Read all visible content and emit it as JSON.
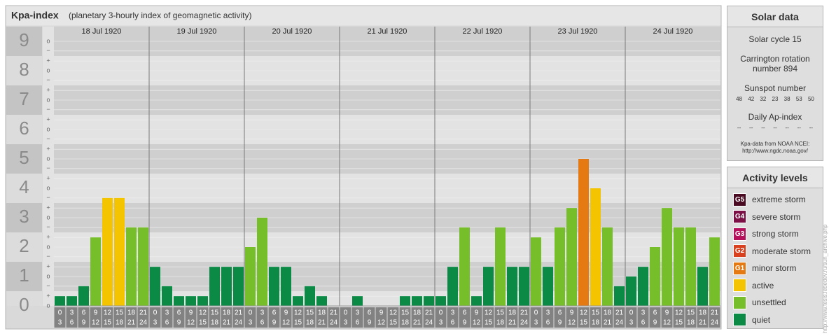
{
  "chart_data": {
    "type": "bar",
    "title": "Kpa-index",
    "subtitle": "(planetary 3-hourly index of geomagnetic activity)",
    "days": [
      "18 Jul 1920",
      "19 Jul 1920",
      "20 Jul 1920",
      "21 Jul 1920",
      "22 Jul 1920",
      "23 Jul 1920",
      "24 Jul 1920"
    ],
    "hour_starts": [
      0,
      3,
      6,
      9,
      12,
      15,
      18,
      21
    ],
    "hour_ends": [
      3,
      6,
      9,
      12,
      15,
      18,
      21,
      24
    ],
    "values": [
      0.33,
      0.33,
      0.67,
      2.33,
      3.67,
      3.67,
      2.67,
      2.67,
      1.33,
      0.67,
      0.33,
      0.33,
      0.33,
      1.33,
      1.33,
      1.33,
      2,
      3,
      1.33,
      1.33,
      0.33,
      0.67,
      0.33,
      0,
      0,
      0.33,
      0,
      0,
      0,
      0.33,
      0.33,
      0.33,
      0.33,
      1.33,
      2.67,
      0.33,
      1.33,
      2.67,
      1.33,
      1.33,
      2.33,
      1.33,
      2.67,
      3.33,
      5,
      4,
      2.67,
      0.67,
      1,
      1.33,
      2,
      3.33,
      2.67,
      2.67,
      1.33,
      2.33
    ],
    "colors": [
      "#0b8a46",
      "#0b8a46",
      "#0b8a46",
      "#76be2a",
      "#f5c400",
      "#f5c400",
      "#76be2a",
      "#76be2a",
      "#0b8a46",
      "#0b8a46",
      "#0b8a46",
      "#0b8a46",
      "#0b8a46",
      "#0b8a46",
      "#0b8a46",
      "#0b8a46",
      "#76be2a",
      "#76be2a",
      "#0b8a46",
      "#0b8a46",
      "#0b8a46",
      "#0b8a46",
      "#0b8a46",
      "#0b8a46",
      "#0b8a46",
      "#0b8a46",
      "#0b8a46",
      "#0b8a46",
      "#0b8a46",
      "#0b8a46",
      "#0b8a46",
      "#0b8a46",
      "#0b8a46",
      "#0b8a46",
      "#76be2a",
      "#0b8a46",
      "#0b8a46",
      "#76be2a",
      "#0b8a46",
      "#0b8a46",
      "#76be2a",
      "#0b8a46",
      "#76be2a",
      "#76be2a",
      "#e57a12",
      "#f5c400",
      "#76be2a",
      "#0b8a46",
      "#0b8a46",
      "#0b8a46",
      "#76be2a",
      "#76be2a",
      "#76be2a",
      "#76be2a",
      "#0b8a46",
      "#76be2a"
    ],
    "ylim": [
      0,
      9.5
    ],
    "yticks": [
      0,
      1,
      2,
      3,
      4,
      5,
      6,
      7,
      8,
      9
    ],
    "minor_ticks": [
      {
        "value": 0,
        "label": "o"
      },
      {
        "value": 0.33,
        "label": "+"
      },
      {
        "value": 0.67,
        "label": "−"
      },
      {
        "value": 1,
        "label": "o"
      },
      {
        "value": 1.33,
        "label": "+"
      },
      {
        "value": 1.67,
        "label": "−"
      },
      {
        "value": 2,
        "label": "o"
      },
      {
        "value": 2.33,
        "label": "+"
      },
      {
        "value": 2.67,
        "label": "−"
      },
      {
        "value": 3,
        "label": "o"
      },
      {
        "value": 3.33,
        "label": "+"
      },
      {
        "value": 3.67,
        "label": "−"
      },
      {
        "value": 4,
        "label": "o"
      },
      {
        "value": 4.33,
        "label": "+"
      },
      {
        "value": 4.67,
        "label": "−"
      },
      {
        "value": 5,
        "label": "o"
      },
      {
        "value": 5.33,
        "label": "+"
      },
      {
        "value": 5.67,
        "label": "−"
      },
      {
        "value": 6,
        "label": "o"
      },
      {
        "value": 6.33,
        "label": "+"
      },
      {
        "value": 6.67,
        "label": "−"
      },
      {
        "value": 7,
        "label": "o"
      },
      {
        "value": 7.33,
        "label": "+"
      },
      {
        "value": 7.67,
        "label": "−"
      },
      {
        "value": 8,
        "label": "o"
      },
      {
        "value": 8.33,
        "label": "+"
      },
      {
        "value": 8.67,
        "label": "−"
      },
      {
        "value": 9,
        "label": "o"
      }
    ],
    "grid": true
  },
  "solar": {
    "title": "Solar data",
    "cycle": "Solar cycle 15",
    "carrington": "Carrington rotation number 894",
    "sunspot_title": "Sunspot number",
    "sunspots": [
      48,
      42,
      32,
      23,
      38,
      53,
      50
    ],
    "ap_title": "Daily Ap-index",
    "ap": [
      "--",
      "--",
      "--",
      "--",
      "--",
      "--",
      "--"
    ],
    "source": "Kpa-data from NOAA NCEI:",
    "source_url": "http://www.ngdc.noaa.gov/"
  },
  "legend": {
    "title": "Activity levels",
    "items": [
      {
        "badge": "G5",
        "label": "extreme storm",
        "color": "#4a0a22"
      },
      {
        "badge": "G4",
        "label": "severe storm",
        "color": "#7c1046"
      },
      {
        "badge": "G3",
        "label": "strong storm",
        "color": "#b4105c"
      },
      {
        "badge": "G2",
        "label": "moderate storm",
        "color": "#d8401e"
      },
      {
        "badge": "G1",
        "label": "minor storm",
        "color": "#e57a12"
      },
      {
        "badge": null,
        "label": "active",
        "color": "#f5c400"
      },
      {
        "badge": null,
        "label": "unsettled",
        "color": "#76be2a"
      },
      {
        "badge": null,
        "label": "quiet",
        "color": "#0b8a46"
      }
    ]
  },
  "watermark": "http://www.tesis.lebedev.ru/sun_archive.php"
}
